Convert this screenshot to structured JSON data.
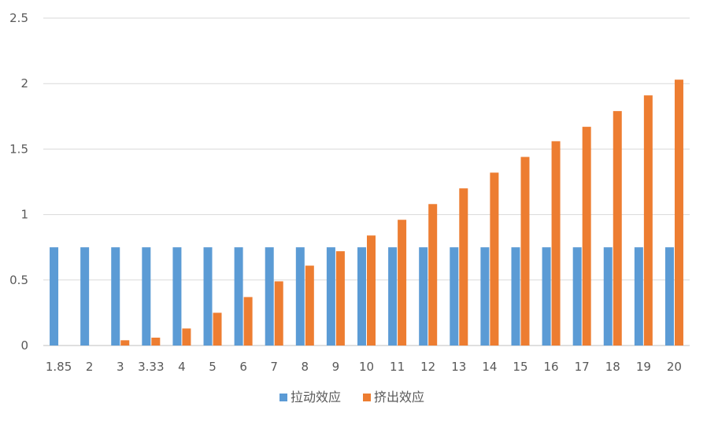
{
  "chart_data": {
    "type": "bar",
    "categories": [
      "1.85",
      "2",
      "3",
      "3.33",
      "4",
      "5",
      "6",
      "7",
      "8",
      "9",
      "10",
      "11",
      "12",
      "13",
      "14",
      "15",
      "16",
      "17",
      "18",
      "19",
      "20"
    ],
    "series": [
      {
        "name": "拉动效应",
        "color": "#5B9BD5",
        "values": [
          0.75,
          0.75,
          0.75,
          0.75,
          0.75,
          0.75,
          0.75,
          0.75,
          0.75,
          0.75,
          0.75,
          0.75,
          0.75,
          0.75,
          0.75,
          0.75,
          0.75,
          0.75,
          0.75,
          0.75,
          0.75
        ]
      },
      {
        "name": "挤出效应",
        "color": "#ED7D31",
        "values": [
          0,
          0,
          0.04,
          0.06,
          0.13,
          0.25,
          0.37,
          0.49,
          0.61,
          0.72,
          0.84,
          0.96,
          1.08,
          1.2,
          1.32,
          1.44,
          1.56,
          1.67,
          1.79,
          1.91,
          2.03
        ]
      }
    ],
    "yticks": [
      "0",
      "0.5",
      "1",
      "1.5",
      "2",
      "2.5"
    ],
    "ylim": [
      0,
      2.5
    ],
    "grid": true,
    "legend_position": "bottom"
  }
}
